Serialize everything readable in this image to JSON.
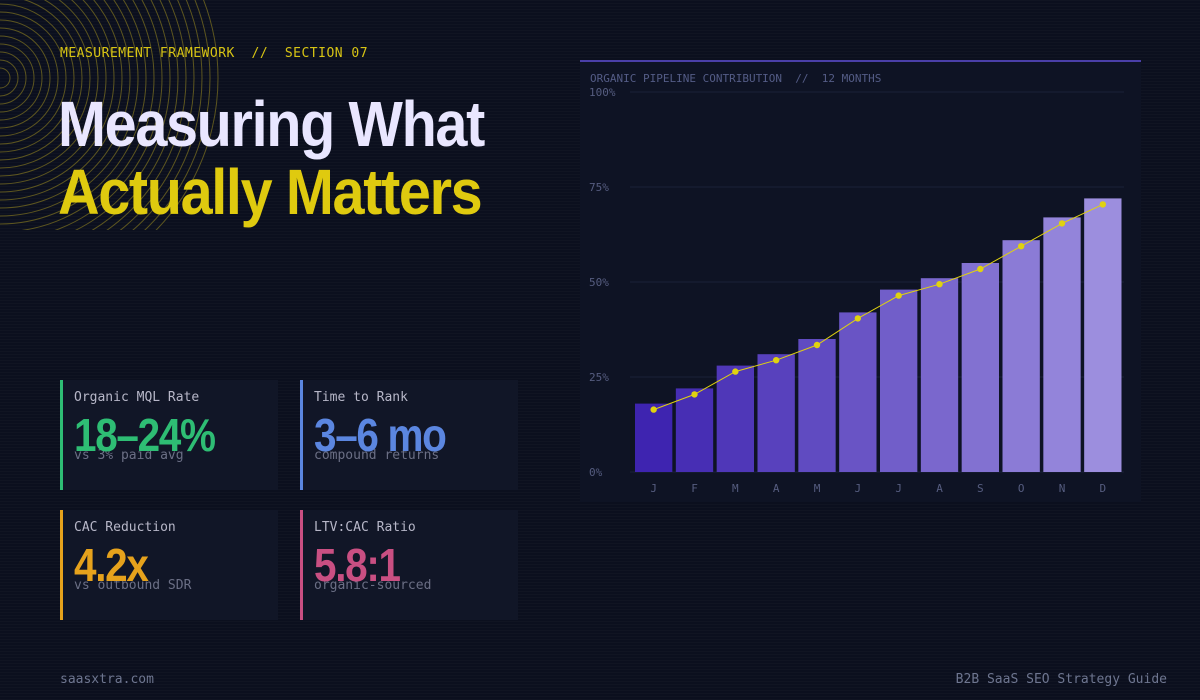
{
  "header": {
    "eyebrow": "MEASUREMENT FRAMEWORK  //  SECTION 07",
    "title_line1": "Measuring What",
    "title_line2": "Actually Matters"
  },
  "metrics": [
    {
      "label": "Organic MQL Rate",
      "value": "18–24%",
      "sub": "vs 3% paid avg",
      "color": "#2ebd74"
    },
    {
      "label": "Time to Rank",
      "value": "3–6 mo",
      "sub": "compound returns",
      "color": "#5b86e0"
    },
    {
      "label": "CAC Reduction",
      "value": "4.2x",
      "sub": "vs outbound SDR",
      "color": "#e6a21c"
    },
    {
      "label": "LTV:CAC Ratio",
      "value": "5.8:1",
      "sub": "organic-sourced",
      "color": "#c94f82"
    }
  ],
  "chart_data": {
    "type": "bar",
    "title": "ORGANIC PIPELINE CONTRIBUTION  //  12 MONTHS",
    "categories": [
      "J",
      "F",
      "M",
      "A",
      "M",
      "J",
      "J",
      "A",
      "S",
      "O",
      "N",
      "D"
    ],
    "values": [
      18,
      22,
      28,
      31,
      35,
      42,
      48,
      51,
      55,
      61,
      67,
      72
    ],
    "ylim": [
      0,
      100
    ],
    "yticks": [
      "0%",
      "25%",
      "50%",
      "75%",
      "100%"
    ],
    "grid": true,
    "trend_line": true,
    "bar_color_start": "#3e24b0",
    "bar_color_end": "#9c8ede",
    "line_color": "#e0d20f"
  },
  "footer": {
    "left": "saasxtra.com",
    "right": "B2B SaaS SEO Strategy Guide"
  }
}
